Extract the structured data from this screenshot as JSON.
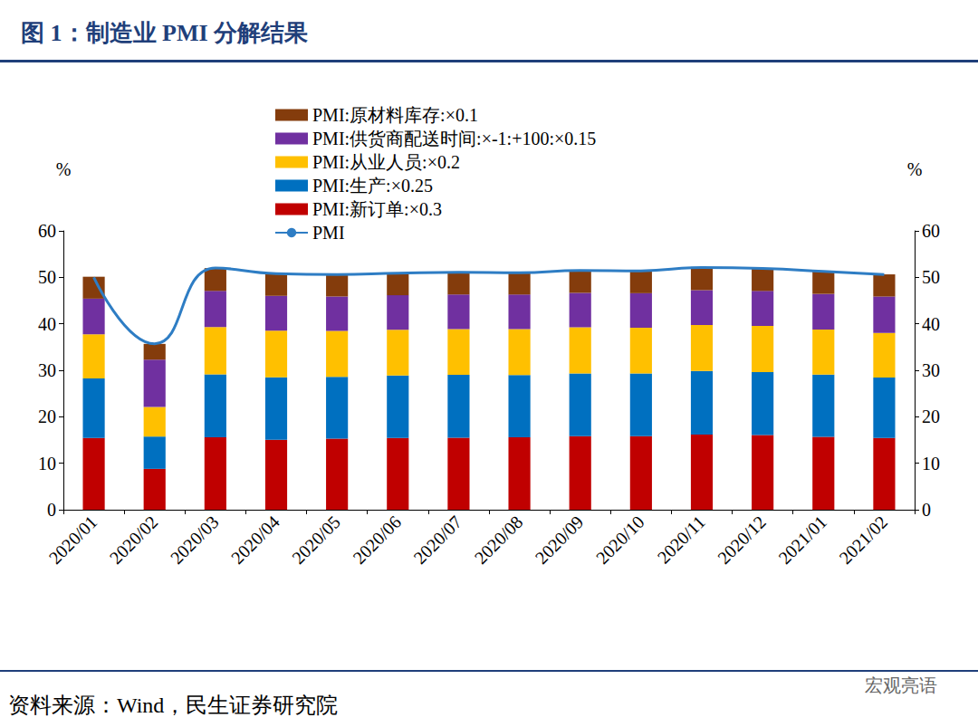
{
  "chart_data": {
    "type": "bar",
    "title": "图 1：制造业 PMI 分解结果",
    "source": "资料来源：Wind，民生证券研究院",
    "annotations": [
      "宏观亮语"
    ],
    "stacked": true,
    "grid": false,
    "legend": "top-left",
    "ylabel": "%",
    "y2label": "%",
    "categories": [
      "2020/01",
      "2020/02",
      "2020/03",
      "2020/04",
      "2020/05",
      "2020/06",
      "2020/07",
      "2020/08",
      "2020/09",
      "2020/10",
      "2020/11",
      "2020/12",
      "2021/01",
      "2021/02"
    ],
    "ylim": [
      0,
      60
    ],
    "yticks": [
      0,
      10,
      20,
      30,
      40,
      50,
      60
    ],
    "y2lim": [
      0,
      60
    ],
    "y2ticks": [
      0,
      10,
      20,
      30,
      40,
      50,
      60
    ],
    "series": [
      {
        "name": "PMI:新订单:×0.3",
        "type": "bar",
        "color": "#c00000",
        "values": [
          15.42,
          8.79,
          15.6,
          15.06,
          15.27,
          15.42,
          15.51,
          15.6,
          15.84,
          15.84,
          16.17,
          16.08,
          15.69,
          15.45
        ]
      },
      {
        "name": "PMI:生产:×0.25",
        "type": "bar",
        "color": "#0070c0",
        "values": [
          12.83,
          6.95,
          13.53,
          13.43,
          13.3,
          13.48,
          13.5,
          13.38,
          13.5,
          13.48,
          13.68,
          13.55,
          13.38,
          12.98
        ]
      },
      {
        "name": "PMI:从业人员:×0.2",
        "type": "bar",
        "color": "#ffc000",
        "values": [
          9.5,
          6.36,
          10.18,
          10.04,
          9.88,
          9.82,
          9.86,
          9.88,
          9.92,
          9.86,
          9.9,
          9.92,
          9.68,
          9.62
        ]
      },
      {
        "name": "PMI:供货商配送时间:×-1:+100:×0.15",
        "type": "bar",
        "color": "#7030a0",
        "values": [
          7.67,
          10.19,
          7.77,
          7.49,
          7.43,
          7.43,
          7.44,
          7.44,
          7.4,
          7.41,
          7.49,
          7.52,
          7.68,
          7.82
        ]
      },
      {
        "name": "PMI:原材料库存:×0.1",
        "type": "bar",
        "color": "#843c0c",
        "values": [
          4.71,
          3.39,
          4.9,
          4.82,
          4.73,
          4.76,
          4.79,
          4.73,
          4.85,
          4.8,
          4.86,
          4.86,
          4.9,
          4.77
        ]
      },
      {
        "name": "PMI",
        "type": "line",
        "axis": "y2",
        "color": "#2e7dc4",
        "line_style": "solid",
        "values": [
          50.0,
          35.7,
          52.0,
          50.8,
          50.6,
          50.9,
          51.1,
          51.0,
          51.5,
          51.4,
          52.1,
          51.9,
          51.3,
          50.6
        ]
      }
    ]
  }
}
